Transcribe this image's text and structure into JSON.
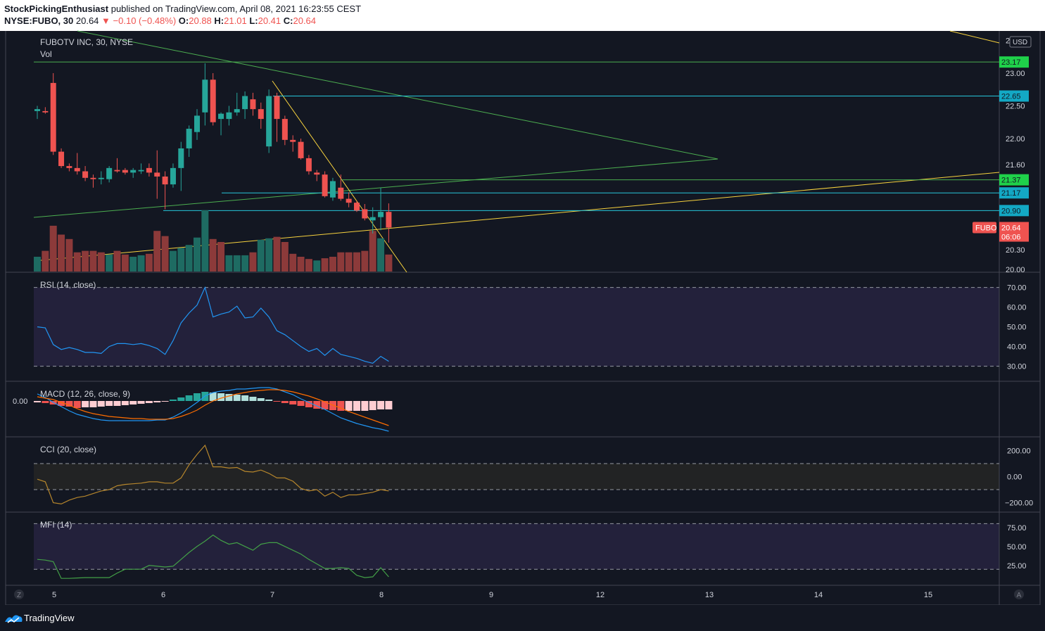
{
  "header": {
    "author": "StockPickingEnthusiast",
    "published": "published on TradingView.com, April 08, 2021 16:23:55 CEST",
    "symbol": "NYSE:FUBO, 30",
    "last": "20.64",
    "arrow": "▼",
    "change": "−0.10 (−0.48%)",
    "o_label": "O:",
    "o_val": "20.88",
    "h_label": "H:",
    "h_val": "21.01",
    "l_label": "L:",
    "l_val": "20.41",
    "c_label": "C:",
    "c_val": "20.64"
  },
  "footer": {
    "brand": "TradingView",
    "z_btn": "Z",
    "a_btn": "A"
  },
  "colors": {
    "bg": "#131722",
    "up": "#26a69a",
    "down": "#ef5350",
    "grid": "#2a2e39",
    "green_line": "#4caf50",
    "cyan_line": "#26c6da",
    "yellow_line": "#f7d23e",
    "rsi": "#2196f3",
    "macd": "#2196f3",
    "signal": "#ff6d00",
    "cci": "#b6862c",
    "mfi": "#43a047"
  },
  "chart_data": [
    {
      "type": "candlestick",
      "title": "FUBOTV INC, 30, NYSE",
      "sublabel": "Vol",
      "currency": "USD",
      "symbol_tag": "FUBO",
      "price_label": "20.64",
      "countdown": "06:06",
      "ylim": [
        19.99,
        23.58
      ],
      "y_ticks": [
        "23.50",
        "23.00",
        "22.50",
        "22.00",
        "21.60",
        "20.30",
        "20.00"
      ],
      "x_ticks": [
        "5",
        "6",
        "7",
        "8",
        "9",
        "12",
        "13",
        "14",
        "15"
      ],
      "hlines": [
        {
          "price": 23.17,
          "label": "23.17",
          "color": "green"
        },
        {
          "price": 22.65,
          "label": "22.65",
          "color": "cyan"
        },
        {
          "price": 21.37,
          "label": "21.37",
          "color": "green"
        },
        {
          "price": 21.17,
          "label": "21.17",
          "color": "cyan"
        },
        {
          "price": 20.9,
          "label": "20.90",
          "color": "cyan"
        }
      ],
      "ohlc": [
        [
          22.42,
          22.5,
          22.3,
          22.45
        ],
        [
          22.42,
          22.48,
          22.38,
          22.4
        ],
        [
          22.85,
          23.0,
          21.75,
          21.8
        ],
        [
          21.8,
          21.85,
          21.55,
          21.58
        ],
        [
          21.58,
          21.62,
          21.5,
          21.55
        ],
        [
          21.55,
          21.78,
          21.45,
          21.5
        ],
        [
          21.5,
          21.58,
          21.35,
          21.4
        ],
        [
          21.4,
          21.45,
          21.25,
          21.38
        ],
        [
          21.38,
          21.5,
          21.3,
          21.4
        ],
        [
          21.38,
          21.58,
          21.33,
          21.55
        ],
        [
          21.52,
          21.7,
          21.48,
          21.5
        ],
        [
          21.52,
          21.55,
          21.45,
          21.48
        ],
        [
          21.48,
          21.55,
          21.4,
          21.52
        ],
        [
          21.5,
          21.62,
          21.46,
          21.52
        ],
        [
          21.55,
          21.62,
          21.42,
          21.48
        ],
        [
          21.48,
          21.82,
          21.08,
          21.42
        ],
        [
          21.42,
          21.5,
          20.92,
          21.3
        ],
        [
          21.3,
          21.62,
          21.25,
          21.55
        ],
        [
          21.55,
          21.95,
          21.2,
          21.85
        ],
        [
          21.85,
          22.2,
          21.72,
          22.15
        ],
        [
          22.1,
          22.45,
          21.98,
          22.35
        ],
        [
          22.4,
          23.15,
          22.2,
          22.9
        ],
        [
          22.9,
          23.0,
          22.2,
          22.25
        ],
        [
          22.3,
          22.4,
          22.05,
          22.38
        ],
        [
          22.3,
          22.5,
          22.2,
          22.4
        ],
        [
          22.4,
          22.7,
          22.35,
          22.45
        ],
        [
          22.45,
          22.72,
          22.3,
          22.65
        ],
        [
          22.6,
          22.7,
          22.35,
          22.45
        ],
        [
          22.45,
          22.55,
          22.15,
          22.3
        ],
        [
          21.88,
          22.75,
          21.78,
          22.65
        ],
        [
          22.65,
          22.7,
          21.95,
          22.3
        ],
        [
          22.3,
          22.35,
          21.9,
          21.98
        ],
        [
          21.98,
          22.05,
          21.8,
          21.95
        ],
        [
          21.95,
          22.0,
          21.68,
          21.7
        ],
        [
          21.7,
          21.75,
          21.45,
          21.5
        ],
        [
          21.48,
          21.52,
          21.35,
          21.45
        ],
        [
          21.45,
          21.5,
          21.1,
          21.12
        ],
        [
          21.1,
          21.4,
          21.05,
          21.35
        ],
        [
          21.25,
          21.45,
          21.05,
          21.08
        ],
        [
          21.08,
          21.18,
          20.95,
          21.02
        ],
        [
          21.02,
          21.05,
          20.88,
          20.9
        ],
        [
          20.92,
          21.0,
          20.75,
          20.78
        ],
        [
          20.75,
          20.95,
          20.55,
          20.8
        ],
        [
          20.8,
          21.25,
          20.6,
          20.88
        ],
        [
          20.88,
          21.01,
          20.41,
          20.64
        ]
      ],
      "volume": [
        [
          0.2,
          "up"
        ],
        [
          0.28,
          "down"
        ],
        [
          0.62,
          "down"
        ],
        [
          0.5,
          "down"
        ],
        [
          0.44,
          "down"
        ],
        [
          0.26,
          "down"
        ],
        [
          0.28,
          "down"
        ],
        [
          0.28,
          "down"
        ],
        [
          0.26,
          "down"
        ],
        [
          0.23,
          "up"
        ],
        [
          0.28,
          "down"
        ],
        [
          0.23,
          "down"
        ],
        [
          0.2,
          "up"
        ],
        [
          0.22,
          "up"
        ],
        [
          0.24,
          "down"
        ],
        [
          0.55,
          "down"
        ],
        [
          0.48,
          "down"
        ],
        [
          0.28,
          "up"
        ],
        [
          0.32,
          "up"
        ],
        [
          0.36,
          "up"
        ],
        [
          0.46,
          "up"
        ],
        [
          0.83,
          "up"
        ],
        [
          0.44,
          "down"
        ],
        [
          0.4,
          "down"
        ],
        [
          0.22,
          "up"
        ],
        [
          0.22,
          "up"
        ],
        [
          0.22,
          "up"
        ],
        [
          0.26,
          "down"
        ],
        [
          0.43,
          "up"
        ],
        [
          0.45,
          "up"
        ],
        [
          0.47,
          "down"
        ],
        [
          0.4,
          "down"
        ],
        [
          0.24,
          "down"
        ],
        [
          0.2,
          "down"
        ],
        [
          0.17,
          "down"
        ],
        [
          0.15,
          "up"
        ],
        [
          0.18,
          "down"
        ],
        [
          0.2,
          "down"
        ],
        [
          0.26,
          "down"
        ],
        [
          0.26,
          "down"
        ],
        [
          0.26,
          "down"
        ],
        [
          0.28,
          "down"
        ],
        [
          0.55,
          "down"
        ],
        [
          0.45,
          "up"
        ],
        [
          0.23,
          "down"
        ]
      ]
    },
    {
      "type": "line",
      "title": "RSI (14, close)",
      "ylim": [
        27,
        72
      ],
      "y_ticks": [
        "70.00",
        "60.00",
        "50.00",
        "40.00",
        "30.00"
      ],
      "bands": [
        70,
        30
      ],
      "values": [
        50,
        49.5,
        41,
        38.5,
        39.5,
        38.5,
        37,
        37,
        36.5,
        40,
        41.5,
        41.5,
        41,
        41.5,
        40.5,
        39,
        36,
        43,
        52,
        57,
        61,
        70,
        55,
        56.5,
        57.5,
        60.5,
        54.5,
        55,
        59.5,
        55,
        48,
        46,
        43,
        40,
        37.5,
        39,
        35.5,
        39,
        36,
        35,
        34,
        32.5,
        31.5,
        35,
        32.5
      ]
    },
    {
      "type": "bar+line",
      "title": "MACD (12, 26, close, 9)",
      "zero_label": "0.00",
      "ylim": [
        -0.48,
        0.22
      ],
      "histogram": [
        -0.02,
        -0.03,
        -0.05,
        -0.07,
        -0.08,
        -0.1,
        -0.09,
        -0.09,
        -0.08,
        -0.07,
        -0.07,
        -0.06,
        -0.05,
        -0.04,
        -0.03,
        -0.02,
        -0.01,
        0.02,
        0.05,
        0.08,
        0.11,
        0.13,
        0.12,
        0.11,
        0.1,
        0.09,
        0.08,
        0.06,
        0.04,
        0.02,
        -0.01,
        -0.03,
        -0.05,
        -0.07,
        -0.09,
        -0.11,
        -0.12,
        -0.13,
        -0.14,
        -0.14,
        -0.14,
        -0.14,
        -0.13,
        -0.12,
        -0.12
      ],
      "macd": [
        0.1,
        0.05,
        -0.02,
        -0.08,
        -0.14,
        -0.19,
        -0.22,
        -0.25,
        -0.27,
        -0.28,
        -0.28,
        -0.28,
        -0.28,
        -0.28,
        -0.28,
        -0.27,
        -0.27,
        -0.23,
        -0.17,
        -0.1,
        -0.02,
        0.07,
        0.12,
        0.14,
        0.15,
        0.17,
        0.17,
        0.18,
        0.19,
        0.19,
        0.17,
        0.13,
        0.09,
        0.03,
        -0.02,
        -0.07,
        -0.12,
        -0.18,
        -0.24,
        -0.28,
        -0.32,
        -0.35,
        -0.38,
        -0.4,
        -0.43
      ],
      "signal": [
        0.06,
        0.04,
        0.02,
        -0.02,
        -0.06,
        -0.11,
        -0.15,
        -0.18,
        -0.2,
        -0.22,
        -0.23,
        -0.24,
        -0.25,
        -0.25,
        -0.26,
        -0.26,
        -0.26,
        -0.25,
        -0.22,
        -0.18,
        -0.13,
        -0.06,
        0.0,
        0.04,
        0.07,
        0.1,
        0.12,
        0.14,
        0.15,
        0.16,
        0.16,
        0.15,
        0.13,
        0.1,
        0.07,
        0.03,
        -0.01,
        -0.06,
        -0.1,
        -0.15,
        -0.19,
        -0.23,
        -0.27,
        -0.31,
        -0.35
      ]
    },
    {
      "type": "line",
      "title": "CCI (20, close)",
      "ylim": [
        -240,
        240
      ],
      "y_ticks": [
        "200.00",
        "0.00",
        "−200.00"
      ],
      "bands": [
        100,
        -100
      ],
      "values": [
        -20,
        -40,
        -200,
        -210,
        -180,
        -160,
        -150,
        -130,
        -110,
        -100,
        -70,
        -60,
        -55,
        -50,
        -40,
        -40,
        -50,
        -50,
        -10,
        90,
        170,
        240,
        75,
        75,
        65,
        70,
        40,
        35,
        50,
        25,
        -10,
        -10,
        -35,
        -90,
        -110,
        -100,
        -150,
        -120,
        -160,
        -140,
        -140,
        -130,
        -120,
        -100,
        -110
      ]
    },
    {
      "type": "line",
      "title": "MFI (14)",
      "ylim": [
        10,
        85
      ],
      "y_ticks": [
        "75.00",
        "50.00",
        "25.00"
      ],
      "bands": [
        80,
        20
      ],
      "values": [
        33,
        32,
        30,
        8,
        8,
        8.5,
        9,
        9,
        9,
        9,
        15,
        20,
        20,
        20,
        25,
        24,
        23,
        24,
        33,
        42,
        50,
        57,
        65,
        58,
        53,
        55,
        50,
        45,
        53,
        55,
        55,
        50,
        45,
        40,
        33,
        27,
        21,
        21,
        22,
        21,
        12,
        9,
        10,
        22,
        10
      ]
    }
  ]
}
